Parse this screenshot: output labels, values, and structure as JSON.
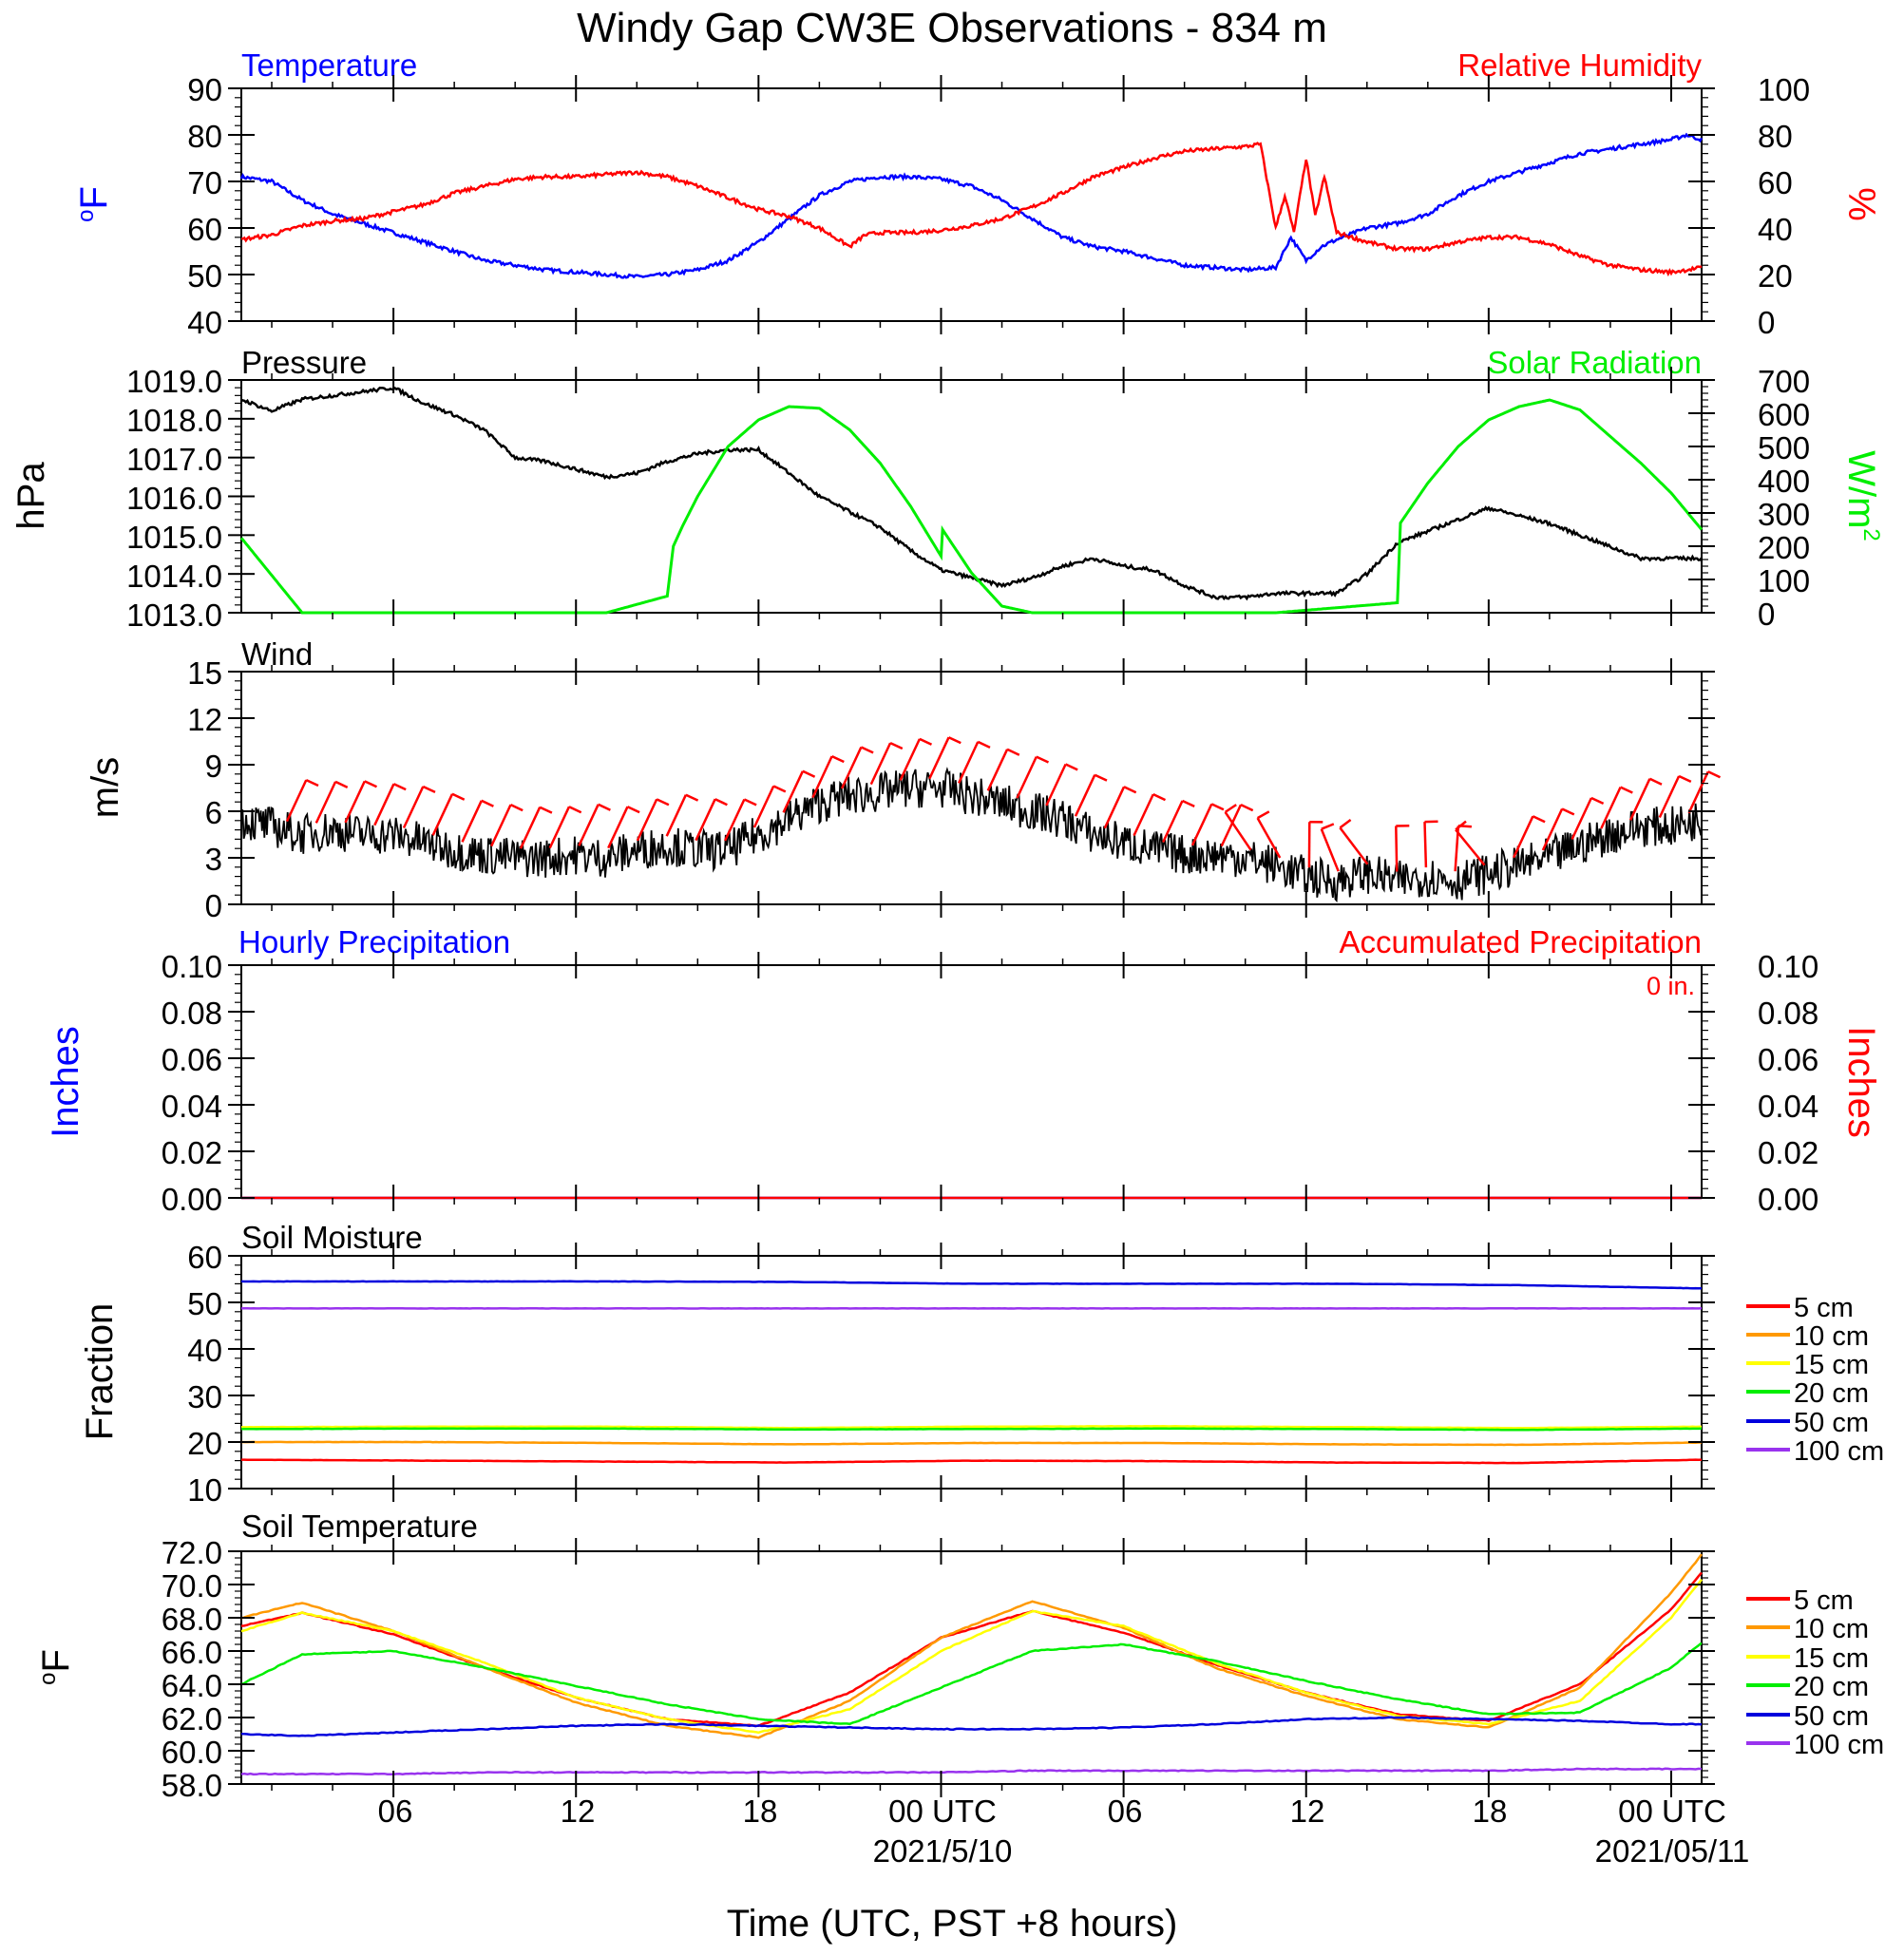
{
  "figure": {
    "title": "Windy Gap CW3E Observations - 834 m",
    "xlabel": "Time (UTC, PST +8 hours)",
    "x_tick_labels": [
      "06",
      "12",
      "18",
      "00 UTC",
      "06",
      "12",
      "18",
      "00 UTC"
    ],
    "x_tick_hours": [
      6,
      12,
      18,
      24,
      30,
      36,
      42,
      48
    ],
    "x_range_hours": [
      1,
      49
    ],
    "date_labels": [
      {
        "text": "2021/5/10",
        "hour": 24
      },
      {
        "text": "2021/05/11",
        "hour": 48
      }
    ]
  },
  "panels": {
    "temp_rh": {
      "left_title": "Temperature",
      "right_title": "Relative Humidity",
      "left_unit_base": "o",
      "left_unit": "F",
      "right_unit": "%",
      "left_ticks": [
        "90",
        "80",
        "70",
        "60",
        "50",
        "40"
      ],
      "right_ticks": [
        "100",
        "80",
        "60",
        "40",
        "20",
        "0"
      ],
      "left_color": "#0000ff",
      "right_color": "#ff0000"
    },
    "pressure_solar": {
      "left_title": "Pressure",
      "right_title": "Solar Radiation",
      "left_unit": "hPa",
      "right_unit_base": "W/m",
      "right_unit_sup": "2",
      "left_ticks": [
        "1019.0",
        "1018.0",
        "1017.0",
        "1016.0",
        "1015.0",
        "1014.0",
        "1013.0"
      ],
      "right_ticks": [
        "700",
        "600",
        "500",
        "400",
        "300",
        "200",
        "100",
        "0"
      ],
      "left_color": "#000000",
      "right_color": "#00ee00"
    },
    "wind": {
      "left_title": "Wind",
      "left_unit": "m/s",
      "left_ticks": [
        "15",
        "12",
        "9",
        "6",
        "3",
        "0"
      ],
      "barb_color": "#ff0000"
    },
    "precip": {
      "left_title": "Hourly Precipitation",
      "right_title": "Accumulated Precipitation",
      "total_label": "0 in.",
      "left_unit": "Inches",
      "right_unit": "Inches",
      "left_ticks": [
        "0.10",
        "0.08",
        "0.06",
        "0.04",
        "0.02",
        "0.00"
      ],
      "right_ticks": [
        "0.10",
        "0.08",
        "0.06",
        "0.04",
        "0.02",
        "0.00"
      ],
      "left_color": "#0000ff",
      "right_color": "#ff0000"
    },
    "soil_moisture": {
      "left_title": "Soil Moisture",
      "left_unit": "Fraction",
      "left_ticks": [
        "60",
        "50",
        "40",
        "30",
        "20",
        "10"
      ],
      "legend": [
        "5 cm",
        "10 cm",
        "15 cm",
        "20 cm",
        "50 cm",
        "100 cm"
      ]
    },
    "soil_temp": {
      "left_title": "Soil Temperature",
      "left_unit_base": "o",
      "left_unit": "F",
      "left_ticks": [
        "72.0",
        "70.0",
        "68.0",
        "66.0",
        "64.0",
        "62.0",
        "60.0",
        "58.0"
      ],
      "legend": [
        "5 cm",
        "10 cm",
        "15 cm",
        "20 cm",
        "50 cm",
        "100 cm"
      ]
    }
  },
  "depth_colors": [
    "#ff0000",
    "#ff9900",
    "#ffff00",
    "#00ee00",
    "#0000dd",
    "#9933ee"
  ],
  "chart_data": [
    {
      "type": "line",
      "title": "Temperature / Relative Humidity",
      "ylabel": "°F",
      "y2label": "%",
      "ylim": [
        40,
        90
      ],
      "y2lim": [
        0,
        100
      ],
      "x_unit": "hours since 2021-05-09 00 UTC",
      "series": [
        {
          "name": "Temperature",
          "axis": "left",
          "color": "#0000ff",
          "x": [
            1,
            2,
            3,
            4,
            5,
            6,
            7,
            8,
            9,
            10,
            11,
            12,
            13,
            14,
            15,
            16,
            17,
            18,
            19,
            20,
            21,
            22,
            23,
            24,
            25,
            26,
            27,
            28,
            29,
            30,
            31,
            32,
            33,
            34,
            35,
            35.5,
            36,
            36.5,
            37,
            38,
            39,
            40,
            41,
            42,
            43,
            44,
            45,
            46,
            47,
            48,
            48.5,
            49
          ],
          "y": [
            71,
            70,
            66,
            63,
            61,
            59,
            57,
            55,
            53,
            52,
            51,
            50.5,
            50,
            49.5,
            50,
            51,
            53,
            57,
            62,
            67,
            70,
            71,
            71,
            70.5,
            69,
            66,
            62,
            58,
            56,
            55,
            53.5,
            52,
            51.5,
            51,
            51.5,
            58,
            53,
            56,
            57.5,
            60,
            61,
            63,
            67,
            70,
            72,
            74,
            76,
            77,
            78,
            79,
            80,
            79
          ]
        },
        {
          "name": "Relative Humidity",
          "axis": "right",
          "color": "#ff0000",
          "x": [
            1,
            2,
            3,
            4,
            5,
            6,
            7,
            8,
            9,
            10,
            11,
            12,
            13,
            14,
            15,
            16,
            17,
            18,
            19,
            20,
            21,
            21.5,
            22,
            23,
            24,
            25,
            26,
            27,
            28,
            29,
            30,
            31,
            32,
            33,
            34,
            34.5,
            35,
            35.3,
            35.6,
            36,
            36.3,
            36.6,
            37,
            38,
            39,
            40,
            41,
            42,
            43,
            44,
            45,
            46,
            47,
            48,
            48.5,
            49
          ],
          "y": [
            35,
            37,
            41,
            43,
            44,
            47,
            50,
            55,
            58,
            61,
            62,
            62,
            63,
            64,
            62,
            58,
            53,
            48,
            45,
            40,
            32,
            37,
            38,
            38,
            39,
            41,
            44,
            49,
            55,
            62,
            66,
            70,
            73,
            74,
            75,
            76,
            40,
            54,
            38,
            70,
            45,
            62,
            38,
            34,
            31,
            31,
            34,
            36,
            36,
            33,
            28,
            24,
            22,
            21,
            22,
            23
          ]
        }
      ]
    },
    {
      "type": "line",
      "title": "Pressure / Solar Radiation",
      "ylabel": "hPa",
      "y2label": "W/m2",
      "ylim": [
        1013.0,
        1019.0
      ],
      "y2lim": [
        0,
        700
      ],
      "x_unit": "hours since 2021-05-09 00 UTC",
      "series": [
        {
          "name": "Pressure",
          "axis": "left",
          "color": "#000000",
          "x": [
            1,
            2,
            3,
            4,
            5,
            6,
            7,
            8,
            9,
            10,
            11,
            12,
            13,
            14,
            15,
            16,
            17,
            18,
            19,
            20,
            21,
            22,
            23,
            24,
            25,
            26,
            27,
            28,
            29,
            30,
            31,
            32,
            33,
            34,
            35,
            36,
            37,
            38,
            39,
            40,
            41,
            42,
            43,
            44,
            45,
            46,
            47,
            48,
            49
          ],
          "y": [
            1018.5,
            1018.2,
            1018.5,
            1018.6,
            1018.7,
            1018.8,
            1018.4,
            1018.1,
            1017.7,
            1017.0,
            1016.9,
            1016.7,
            1016.5,
            1016.6,
            1016.9,
            1017.1,
            1017.2,
            1017.2,
            1016.6,
            1016.0,
            1015.6,
            1015.2,
            1014.6,
            1014.1,
            1013.9,
            1013.7,
            1013.9,
            1014.2,
            1014.4,
            1014.2,
            1014.1,
            1013.7,
            1013.4,
            1013.4,
            1013.5,
            1013.5,
            1013.5,
            1014.0,
            1014.8,
            1015.1,
            1015.4,
            1015.7,
            1015.5,
            1015.3,
            1015.0,
            1014.7,
            1014.4,
            1014.4,
            1014.4
          ]
        },
        {
          "name": "Solar Radiation",
          "axis": "right",
          "color": "#00ee00",
          "x": [
            1,
            3,
            5,
            10,
            13,
            14,
            15,
            15.2,
            15.5,
            16,
            17,
            18,
            19,
            20,
            21,
            22,
            23,
            24,
            24.05,
            25,
            26,
            27,
            28,
            30,
            35,
            39,
            39.1,
            40,
            41,
            42,
            43,
            44,
            45,
            46,
            47,
            48,
            49
          ],
          "y": [
            225,
            0,
            0,
            0,
            0,
            25,
            50,
            200,
            260,
            350,
            500,
            580,
            620,
            615,
            550,
            450,
            320,
            170,
            250,
            120,
            20,
            0,
            0,
            0,
            0,
            30,
            270,
            390,
            500,
            580,
            620,
            640,
            610,
            530,
            450,
            360,
            250
          ]
        }
      ]
    },
    {
      "type": "line",
      "title": "Wind",
      "ylabel": "m/s",
      "ylim": [
        0,
        15
      ],
      "x_unit": "hours since 2021-05-09 00 UTC",
      "series": [
        {
          "name": "Wind speed",
          "color": "#000000",
          "x": [
            1,
            2,
            3,
            4,
            5,
            6,
            7,
            8,
            9,
            10,
            11,
            12,
            13,
            14,
            15,
            16,
            17,
            18,
            19,
            20,
            21,
            22,
            23,
            24,
            25,
            26,
            27,
            28,
            29,
            30,
            31,
            32,
            33,
            34,
            35,
            36,
            37,
            38,
            39,
            40,
            41,
            42,
            43,
            44,
            45,
            46,
            47,
            48,
            49
          ],
          "y": [
            5.5,
            5.0,
            4.5,
            4.8,
            4.5,
            4.5,
            4.0,
            3.5,
            3.2,
            3.0,
            3.0,
            3.2,
            3.0,
            3.5,
            3.8,
            3.5,
            3.5,
            4.5,
            5.5,
            6.5,
            7.0,
            7.2,
            7.5,
            7.5,
            7.0,
            6.5,
            6.0,
            5.5,
            4.5,
            4.0,
            3.5,
            3.2,
            3.2,
            3.0,
            2.5,
            1.8,
            1.5,
            2.0,
            1.5,
            1.8,
            1.5,
            2.0,
            2.5,
            3.0,
            3.8,
            4.5,
            5.0,
            5.0,
            5.5
          ]
        }
      ]
    },
    {
      "type": "line",
      "title": "Hourly Precipitation / Accumulated Precipitation",
      "ylabel": "Inches",
      "y2label": "Inches",
      "ylim": [
        0,
        0.1
      ],
      "y2lim": [
        0,
        0.1
      ],
      "series": [
        {
          "name": "Hourly Precipitation",
          "axis": "left",
          "color": "#0000ff",
          "x": [
            1,
            49
          ],
          "y": [
            0,
            0
          ]
        },
        {
          "name": "Accumulated Precipitation",
          "axis": "right",
          "color": "#ff0000",
          "x": [
            1,
            49
          ],
          "y": [
            0,
            0
          ]
        }
      ]
    },
    {
      "type": "line",
      "title": "Soil Moisture",
      "ylabel": "Fraction",
      "ylim": [
        10,
        60
      ],
      "x": [
        1,
        7,
        13,
        19,
        25,
        31,
        37,
        43,
        49
      ],
      "series": [
        {
          "name": "5 cm",
          "values": [
            16.2,
            16.0,
            15.8,
            15.6,
            16.0,
            15.9,
            15.6,
            15.5,
            16.2
          ]
        },
        {
          "name": "10 cm",
          "values": [
            20.0,
            20.0,
            19.8,
            19.5,
            19.8,
            19.8,
            19.5,
            19.4,
            19.9
          ]
        },
        {
          "name": "15 cm",
          "values": [
            23.2,
            23.3,
            23.3,
            23.0,
            23.3,
            23.4,
            23.2,
            23.0,
            23.3
          ]
        },
        {
          "name": "20 cm",
          "values": [
            22.8,
            22.9,
            22.9,
            22.7,
            22.8,
            22.9,
            22.8,
            22.6,
            22.9
          ]
        },
        {
          "name": "50 cm",
          "values": [
            54.5,
            54.5,
            54.5,
            54.4,
            54.0,
            54.0,
            54.0,
            53.7,
            53.0
          ]
        },
        {
          "name": "100 cm",
          "values": [
            48.7,
            48.7,
            48.7,
            48.7,
            48.7,
            48.7,
            48.7,
            48.7,
            48.7
          ]
        }
      ]
    },
    {
      "type": "line",
      "title": "Soil Temperature",
      "ylabel": "°F",
      "ylim": [
        58.0,
        72.0
      ],
      "x": [
        1,
        3,
        6,
        9,
        12,
        15,
        18,
        21,
        24,
        27,
        30,
        33,
        36,
        39,
        42,
        45,
        48,
        49
      ],
      "series": [
        {
          "name": "5 cm",
          "values": [
            67.5,
            68.3,
            67.0,
            65.0,
            63.2,
            61.9,
            61.5,
            63.5,
            66.8,
            68.4,
            67.1,
            65.2,
            63.5,
            62.2,
            61.8,
            64.0,
            68.5,
            70.7
          ]
        },
        {
          "name": "10 cm",
          "values": [
            68.0,
            68.9,
            67.2,
            65.0,
            62.9,
            61.5,
            60.8,
            63.0,
            66.8,
            69.0,
            67.4,
            65.0,
            63.3,
            61.9,
            61.4,
            63.8,
            69.5,
            71.8
          ]
        },
        {
          "name": "15 cm",
          "values": [
            67.2,
            68.3,
            67.2,
            65.3,
            63.2,
            61.9,
            61.1,
            62.5,
            66.0,
            68.4,
            67.5,
            65.3,
            63.5,
            62.1,
            61.6,
            63.0,
            68.0,
            70.3
          ]
        },
        {
          "name": "20 cm",
          "values": [
            64.0,
            65.8,
            66.0,
            65.0,
            63.9,
            62.8,
            61.9,
            61.6,
            63.8,
            66.0,
            66.4,
            65.4,
            64.2,
            63.1,
            62.2,
            62.3,
            65.0,
            66.5
          ]
        },
        {
          "name": "50 cm",
          "values": [
            61.0,
            60.9,
            61.1,
            61.3,
            61.5,
            61.6,
            61.5,
            61.4,
            61.3,
            61.3,
            61.4,
            61.6,
            61.9,
            62.0,
            61.9,
            61.8,
            61.6,
            61.6
          ]
        },
        {
          "name": "100 cm",
          "values": [
            58.6,
            58.6,
            58.6,
            58.7,
            58.7,
            58.7,
            58.7,
            58.7,
            58.7,
            58.8,
            58.8,
            58.8,
            58.8,
            58.8,
            58.8,
            58.9,
            58.9,
            58.9
          ]
        }
      ]
    }
  ]
}
